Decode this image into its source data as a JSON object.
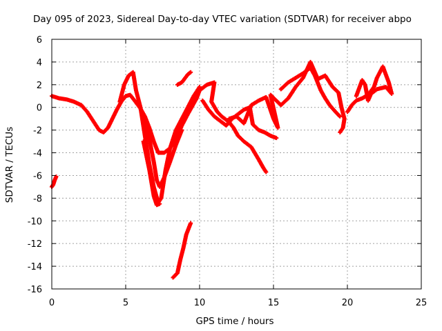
{
  "chart_data": {
    "type": "scatter",
    "title": "Day 095 of 2023, Sidereal Day-to-day VTEC variation (SDTVAR) for receiver abpo",
    "xlabel": "GPS time / hours",
    "ylabel": "SDTVAR / TECUs",
    "xlim": [
      0,
      25
    ],
    "ylim": [
      -16,
      6
    ],
    "xticks": [
      "0",
      "5",
      "10",
      "15",
      "20",
      "25"
    ],
    "yticks": [
      "6",
      "4",
      "2",
      "0",
      "-2",
      "-4",
      "-6",
      "-8",
      "-10",
      "-12",
      "-14",
      "-16"
    ],
    "grid": true,
    "marker": "+",
    "color": "#ff0000",
    "series": [
      {
        "name": "seg-early-low",
        "points": [
          [
            0.0,
            -7.0
          ],
          [
            0.1,
            -6.8
          ],
          [
            0.2,
            -6.4
          ],
          [
            0.3,
            -6.1
          ]
        ]
      },
      {
        "name": "seg-main-1",
        "points": [
          [
            0.0,
            1.0
          ],
          [
            0.5,
            0.8
          ],
          [
            1.0,
            0.7
          ],
          [
            1.5,
            0.5
          ],
          [
            2.0,
            0.2
          ],
          [
            2.4,
            -0.4
          ],
          [
            2.8,
            -1.2
          ],
          [
            3.2,
            -2.0
          ],
          [
            3.5,
            -2.2
          ],
          [
            3.8,
            -1.8
          ],
          [
            4.1,
            -1.0
          ],
          [
            4.4,
            -0.2
          ],
          [
            4.7,
            0.5
          ],
          [
            5.0,
            1.0
          ],
          [
            5.3,
            1.1
          ],
          [
            5.6,
            0.6
          ],
          [
            6.0,
            -0.1
          ],
          [
            6.3,
            -0.8
          ],
          [
            6.6,
            -1.8
          ],
          [
            6.9,
            -3.0
          ],
          [
            7.2,
            -4.0
          ],
          [
            7.6,
            -4.0
          ],
          [
            8.0,
            -3.6
          ],
          [
            8.4,
            -2.8
          ],
          [
            8.8,
            -1.6
          ],
          [
            9.2,
            -0.6
          ],
          [
            9.5,
            0.1
          ],
          [
            9.8,
            0.8
          ],
          [
            10.0,
            1.5
          ]
        ]
      },
      {
        "name": "seg-main-2",
        "points": [
          [
            4.6,
            0.5
          ],
          [
            4.9,
            2.0
          ],
          [
            5.2,
            2.8
          ],
          [
            5.5,
            3.1
          ],
          [
            5.7,
            1.5
          ],
          [
            6.0,
            0.0
          ],
          [
            6.3,
            -2.5
          ],
          [
            6.6,
            -5.0
          ],
          [
            6.9,
            -7.0
          ],
          [
            7.2,
            -8.4
          ],
          [
            7.4,
            -8.0
          ],
          [
            7.7,
            -5.5
          ],
          [
            8.0,
            -3.6
          ],
          [
            8.4,
            -2.0
          ],
          [
            8.8,
            -1.0
          ],
          [
            9.2,
            0.0
          ],
          [
            9.6,
            1.0
          ],
          [
            10.0,
            1.8
          ]
        ]
      },
      {
        "name": "seg-main-3",
        "points": [
          [
            5.8,
            0.6
          ],
          [
            6.2,
            -0.8
          ],
          [
            6.6,
            -2.8
          ],
          [
            6.9,
            -4.8
          ],
          [
            7.1,
            -6.4
          ],
          [
            7.3,
            -7.0
          ],
          [
            7.6,
            -6.2
          ],
          [
            8.0,
            -4.8
          ],
          [
            8.4,
            -3.3
          ],
          [
            8.8,
            -2.0
          ]
        ]
      },
      {
        "name": "seg-main-4",
        "points": [
          [
            6.2,
            -3.0
          ],
          [
            6.6,
            -5.5
          ],
          [
            6.9,
            -7.8
          ],
          [
            7.1,
            -8.6
          ],
          [
            7.3,
            -8.5
          ]
        ]
      },
      {
        "name": "seg-spike",
        "points": [
          [
            8.5,
            2.0
          ],
          [
            8.8,
            2.2
          ],
          [
            9.2,
            2.9
          ],
          [
            9.4,
            3.1
          ]
        ]
      },
      {
        "name": "seg-deep-low",
        "points": [
          [
            8.2,
            -15.0
          ],
          [
            8.5,
            -14.6
          ],
          [
            8.7,
            -13.4
          ],
          [
            8.9,
            -12.4
          ],
          [
            9.1,
            -11.2
          ],
          [
            9.4,
            -10.2
          ]
        ]
      },
      {
        "name": "seg-afternoon-1",
        "points": [
          [
            10.0,
            1.5
          ],
          [
            10.5,
            2.0
          ],
          [
            11.0,
            2.2
          ],
          [
            10.8,
            0.5
          ],
          [
            11.2,
            -0.4
          ],
          [
            11.5,
            -0.8
          ],
          [
            12.0,
            -1.3
          ],
          [
            12.3,
            -1.8
          ],
          [
            12.6,
            -2.5
          ],
          [
            13.0,
            -3.0
          ],
          [
            13.5,
            -3.5
          ],
          [
            14.0,
            -4.6
          ],
          [
            14.3,
            -5.3
          ],
          [
            14.5,
            -5.7
          ]
        ]
      },
      {
        "name": "seg-afternoon-2",
        "points": [
          [
            10.2,
            0.6
          ],
          [
            10.6,
            -0.2
          ],
          [
            11.0,
            -0.8
          ],
          [
            11.4,
            -1.2
          ],
          [
            11.8,
            -1.6
          ],
          [
            12.2,
            -1.0
          ],
          [
            12.6,
            -0.6
          ],
          [
            13.0,
            -0.2
          ],
          [
            13.4,
            0.0
          ],
          [
            13.6,
            -1.5
          ],
          [
            14.0,
            -2.0
          ],
          [
            14.4,
            -2.2
          ],
          [
            14.8,
            -2.5
          ],
          [
            15.2,
            -2.7
          ]
        ]
      },
      {
        "name": "seg-afternoon-3",
        "points": [
          [
            12.0,
            -1.0
          ],
          [
            12.5,
            -0.8
          ],
          [
            13.0,
            -1.4
          ],
          [
            13.5,
            0.2
          ],
          [
            14.0,
            0.6
          ],
          [
            14.5,
            0.9
          ],
          [
            15.0,
            -1.0
          ],
          [
            15.3,
            -1.8
          ],
          [
            14.8,
            1.1
          ],
          [
            15.5,
            0.2
          ],
          [
            16.0,
            0.8
          ],
          [
            16.5,
            1.8
          ],
          [
            17.0,
            2.6
          ],
          [
            17.5,
            4.0
          ],
          [
            18.0,
            2.5
          ],
          [
            18.5,
            2.8
          ],
          [
            19.0,
            1.8
          ],
          [
            19.4,
            1.3
          ],
          [
            19.6,
            0.0
          ],
          [
            19.8,
            -1.0
          ],
          [
            19.7,
            -1.8
          ],
          [
            19.5,
            -2.2
          ]
        ]
      },
      {
        "name": "seg-afternoon-4",
        "points": [
          [
            15.5,
            1.6
          ],
          [
            16.0,
            2.2
          ],
          [
            16.5,
            2.6
          ],
          [
            17.0,
            3.0
          ],
          [
            17.5,
            3.5
          ],
          [
            17.8,
            2.8
          ],
          [
            18.2,
            1.5
          ],
          [
            18.5,
            0.8
          ],
          [
            18.8,
            0.2
          ],
          [
            19.2,
            -0.4
          ],
          [
            19.5,
            -0.8
          ]
        ]
      },
      {
        "name": "seg-evening",
        "points": [
          [
            20.0,
            -0.4
          ],
          [
            20.3,
            0.2
          ],
          [
            20.6,
            0.6
          ],
          [
            21.0,
            0.8
          ],
          [
            21.4,
            1.1
          ],
          [
            21.8,
            1.8
          ],
          [
            22.0,
            2.6
          ],
          [
            22.4,
            3.6
          ],
          [
            22.8,
            2.2
          ],
          [
            23.0,
            1.2
          ],
          [
            22.6,
            1.8
          ],
          [
            22.0,
            1.6
          ],
          [
            21.6,
            1.2
          ],
          [
            21.4,
            0.6
          ],
          [
            21.2,
            2.0
          ],
          [
            21.0,
            2.4
          ],
          [
            20.6,
            1.0
          ]
        ]
      }
    ]
  }
}
